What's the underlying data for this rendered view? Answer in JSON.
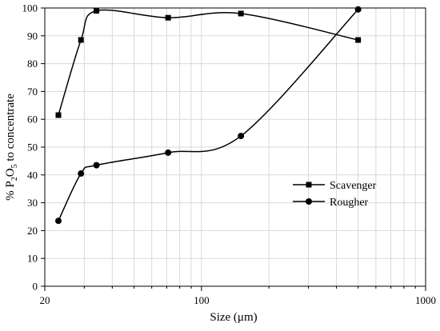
{
  "chart_data": {
    "type": "line",
    "xlabel": "Size (μm)",
    "ylabel_parts": {
      "prefix": "% P",
      "sub2": "2",
      "mid": "O",
      "sub5": "5",
      "suffix": " to concentrate"
    },
    "xscale": "log",
    "xlim": [
      20,
      1000
    ],
    "ylim": [
      0,
      100
    ],
    "x_tick_labels": [
      "20",
      "100",
      "1000"
    ],
    "y_tick_labels": [
      "0",
      "10",
      "20",
      "30",
      "40",
      "50",
      "60",
      "70",
      "80",
      "90",
      "100"
    ],
    "grid": true,
    "legend_position": "right-middle",
    "series": [
      {
        "name": "Scavenger",
        "marker": "square",
        "x": [
          23,
          29,
          34,
          71,
          150,
          500
        ],
        "y": [
          61.5,
          88.5,
          99,
          96.5,
          98,
          88.5
        ]
      },
      {
        "name": "Rougher",
        "marker": "circle",
        "x": [
          23,
          29,
          34,
          71,
          150,
          500
        ],
        "y": [
          23.5,
          40.5,
          43.5,
          48,
          54,
          99.5
        ]
      }
    ]
  }
}
